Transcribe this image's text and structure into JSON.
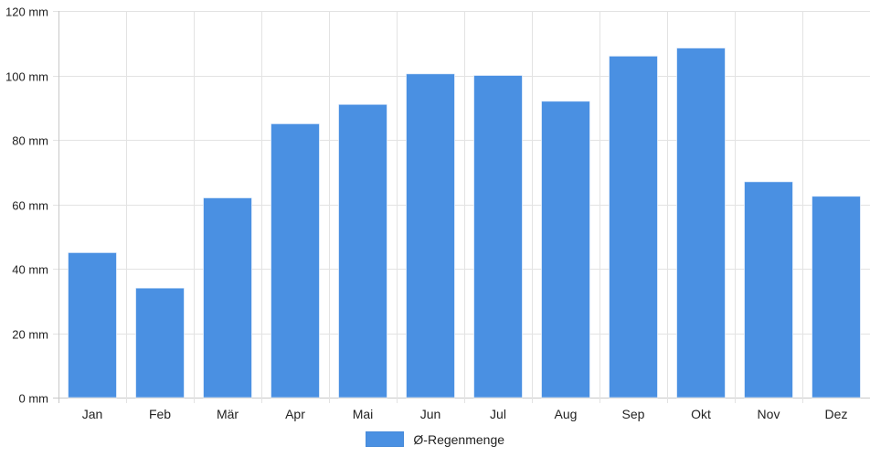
{
  "chart_data": {
    "type": "bar",
    "categories": [
      "Jan",
      "Feb",
      "Mär",
      "Apr",
      "Mai",
      "Jun",
      "Jul",
      "Aug",
      "Sep",
      "Okt",
      "Nov",
      "Dez"
    ],
    "series": [
      {
        "name": "Ø-Regenmenge",
        "values": [
          45,
          34,
          62,
          85,
          91,
          100.5,
          100,
          92,
          106,
          108.5,
          67,
          62.5
        ]
      }
    ],
    "yticks": [
      "0 mm",
      "20 mm",
      "40 mm",
      "60 mm",
      "80 mm",
      "100 mm",
      "120 mm"
    ],
    "ylim": [
      0,
      120
    ],
    "grid": true,
    "legend_position": "bottom",
    "colors": {
      "bar": "#4a90e2",
      "grid": "#e3e3e3",
      "axis": "#c8c8c8",
      "text": "#222222"
    }
  }
}
